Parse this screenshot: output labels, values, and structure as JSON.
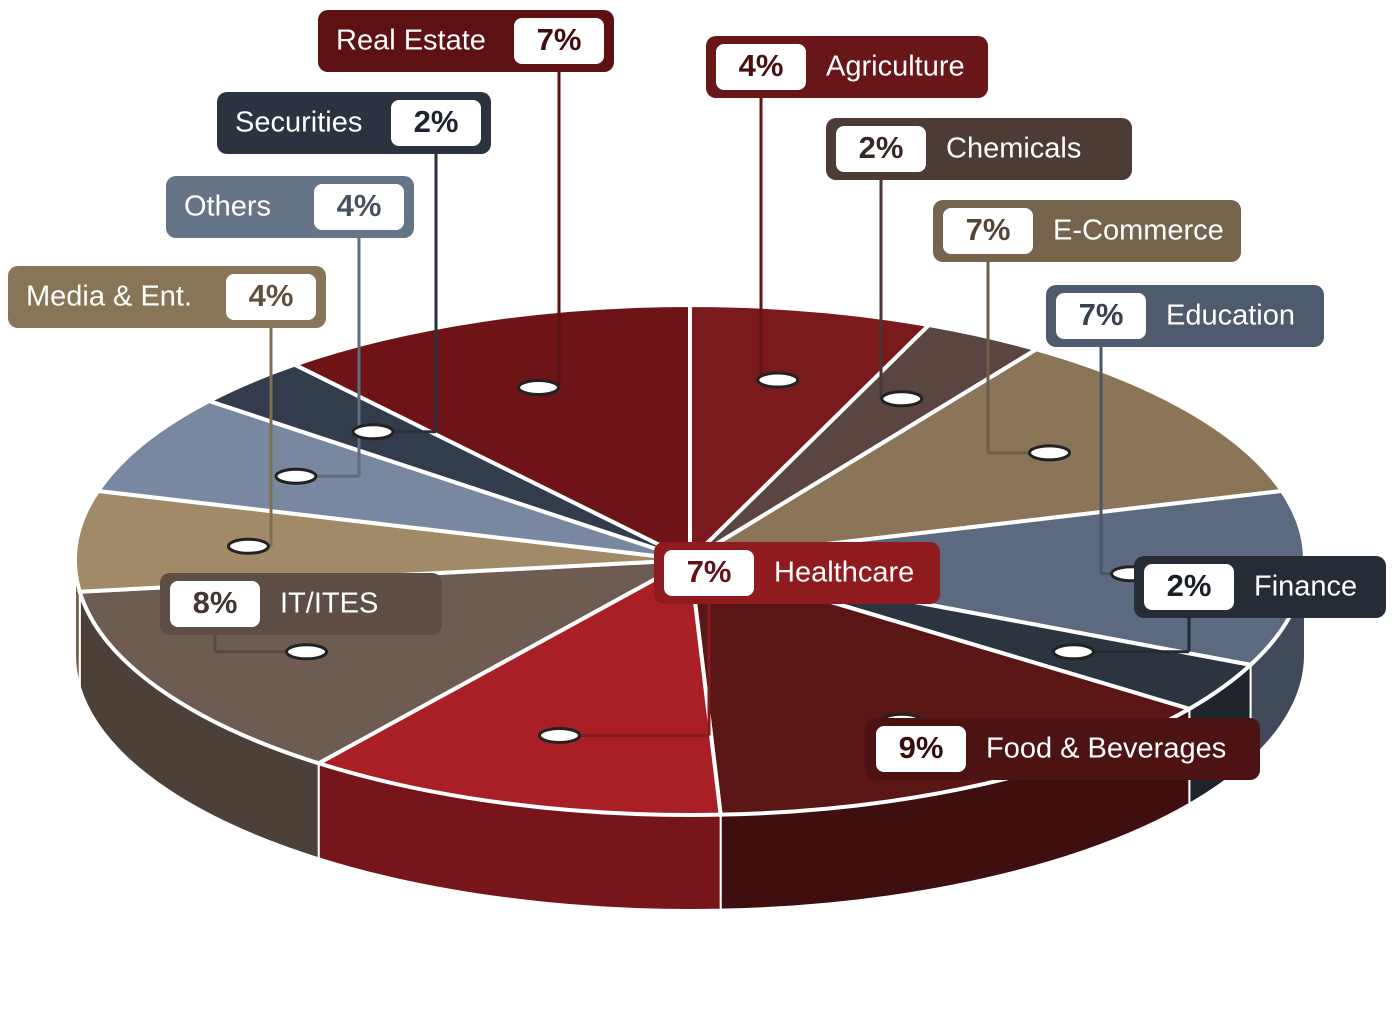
{
  "chart_data": {
    "type": "pie",
    "categories": [
      "Agriculture",
      "Chemicals",
      "E-Commerce",
      "Education",
      "Finance",
      "Food & Beverages",
      "Healthcare",
      "IT/ITES",
      "Media & Ent.",
      "Others",
      "Securities",
      "Real Estate"
    ],
    "values": [
      4,
      2,
      7,
      7,
      2,
      9,
      7,
      8,
      4,
      4,
      2,
      7
    ],
    "value_labels": [
      "4%",
      "2%",
      "7%",
      "7%",
      "2%",
      "9%",
      "7%",
      "8%",
      "4%",
      "4%",
      "2%",
      "7%"
    ],
    "colors": [
      "#7a1a1c",
      "#5a4540",
      "#8a7558",
      "#5c6a80",
      "#2c3440",
      "#5a1515",
      "#a82025",
      "#6e5c52",
      "#a08a68",
      "#7888a0",
      "#323c4c",
      "#6e1416"
    ]
  }
}
